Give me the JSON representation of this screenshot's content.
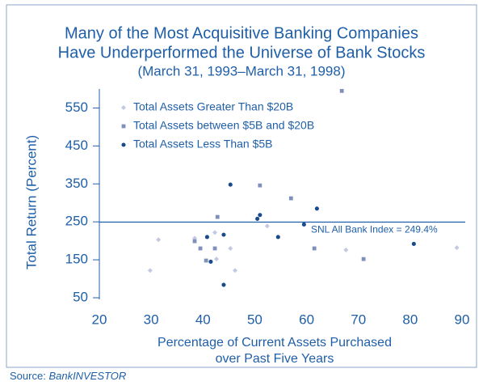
{
  "chart_data": {
    "type": "scatter",
    "title": "Many of the Most Acquisitive Banking Companies",
    "title_line2": "Have Underperformed the Universe of Bank Stocks",
    "subtitle": "(March 31, 1993–March 31, 1998)",
    "x_label": "Percentage of Current Assets Purchased",
    "x_label_line2": "over Past Five Years",
    "y_label": "Total Return (Percent)",
    "xlim": [
      20,
      90
    ],
    "xticks": [
      20,
      30,
      40,
      50,
      60,
      70,
      80,
      90
    ],
    "ylim": [
      50,
      600
    ],
    "yticks": [
      50,
      150,
      250,
      350,
      450,
      550
    ],
    "legend": "upper left",
    "reference_line": {
      "value": 249.4,
      "label": "SNL All Bank Index = 249.4%",
      "color": "#1f5fa8"
    },
    "series": [
      {
        "name": "Total Assets Greater Than $20B",
        "color": "#c3c9e2",
        "marker": "diamond",
        "x": [
          29.8,
          31.4,
          38.4,
          42.3,
          42.6,
          45.3,
          46.2,
          52.4,
          67.6,
          89
        ],
        "y": [
          122,
          203,
          207,
          222,
          152,
          180,
          122,
          239,
          176,
          182
        ]
      },
      {
        "name": "Total Assets between $5B and $20B",
        "color": "#7f90bb",
        "marker": "square",
        "x": [
          38.4,
          39.5,
          40.6,
          42.8,
          42.3,
          51,
          57,
          61.5,
          66.8,
          71
        ],
        "y": [
          199,
          180,
          148,
          263,
          180,
          346,
          312,
          180,
          595,
          152
        ]
      },
      {
        "name": "Total Assets Less Than $5B",
        "color": "#184a8c",
        "marker": "circle",
        "x": [
          45.3,
          40.8,
          44,
          41.5,
          44,
          50.5,
          51,
          54.5,
          59.5,
          62,
          80.7
        ],
        "y": [
          348,
          210,
          216,
          145,
          84,
          258,
          268,
          210,
          243,
          285,
          192
        ]
      }
    ],
    "source_prefix": "Source:",
    "source_name": "BankINVESTOR"
  }
}
